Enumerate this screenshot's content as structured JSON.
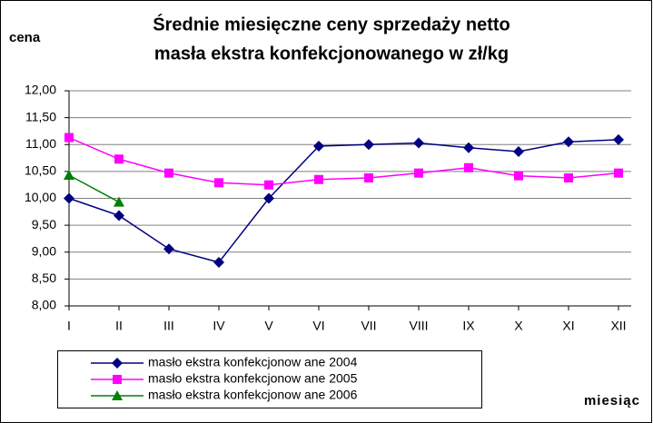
{
  "chart_data": {
    "type": "line",
    "title": [
      "Średnie miesięczne ceny sprzedaży netto",
      "masła ekstra konfekcjonowanego w zł/kg"
    ],
    "y_label": "cena",
    "x_label": "miesiąc",
    "categories": [
      "I",
      "II",
      "III",
      "IV",
      "V",
      "VI",
      "VII",
      "VIII",
      "IX",
      "X",
      "XI",
      "XII"
    ],
    "series": [
      {
        "name": "masło ekstra konfekcjonow ane 2004",
        "color": "#000080",
        "marker": "diamond",
        "values": [
          10.0,
          9.68,
          9.06,
          8.81,
          10.0,
          10.97,
          11.0,
          11.03,
          10.94,
          10.87,
          11.05,
          11.09
        ]
      },
      {
        "name": "masło ekstra konfekcjonow ane 2005",
        "color": "#ff00ff",
        "marker": "square",
        "values": [
          11.13,
          10.73,
          10.47,
          10.29,
          10.25,
          10.35,
          10.38,
          10.47,
          10.57,
          10.42,
          10.38,
          10.47
        ]
      },
      {
        "name": "masło ekstra konfekcjonow ane 2006",
        "color": "#008000",
        "marker": "triangle",
        "values": [
          10.43,
          9.93,
          null,
          null,
          null,
          null,
          null,
          null,
          null,
          null,
          null,
          null
        ]
      }
    ],
    "ylim": [
      8,
      12
    ],
    "yticks": [
      {
        "value": 8,
        "label": "8,00"
      },
      {
        "value": 8.5,
        "label": "8,50"
      },
      {
        "value": 9,
        "label": "9,00"
      },
      {
        "value": 9.5,
        "label": "9,50"
      },
      {
        "value": 10,
        "label": "10,00"
      },
      {
        "value": 10.5,
        "label": "10,50"
      },
      {
        "value": 11,
        "label": "11,00"
      },
      {
        "value": 11.5,
        "label": "11,50"
      },
      {
        "value": 12,
        "label": "12,00"
      }
    ],
    "grid": true
  }
}
